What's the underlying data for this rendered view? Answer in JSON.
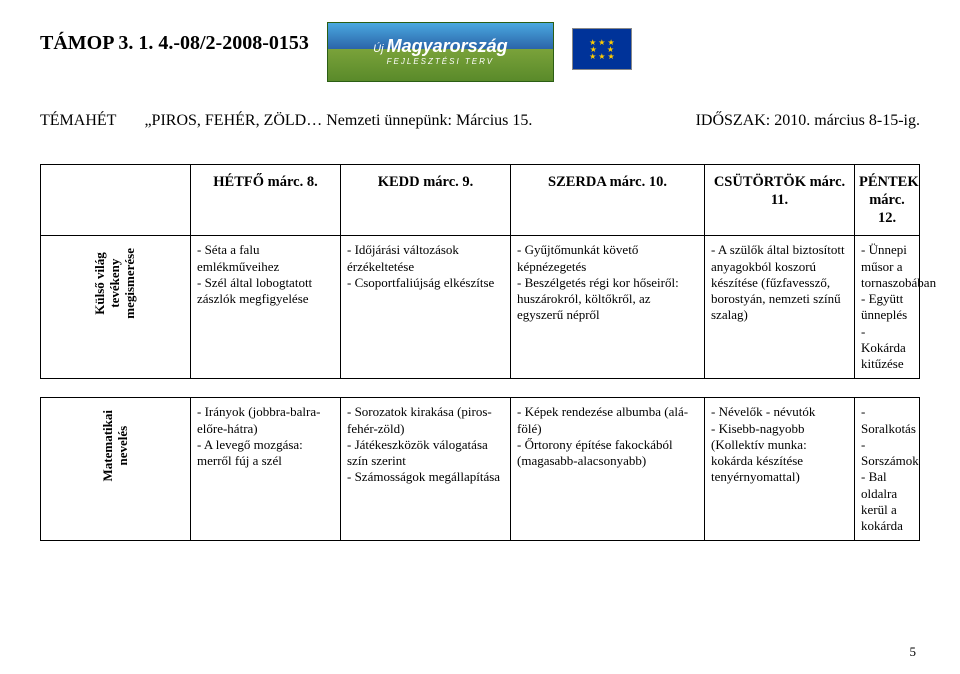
{
  "header": {
    "project_code": "TÁMOP 3. 1. 4.-08/2-2008-0153",
    "logo_top": "Új",
    "logo_main": "Magyarország",
    "logo_sub": "FEJLESZTÉSI TERV"
  },
  "title": {
    "theme_label": "TÉMAHÉT",
    "theme_text": "„PIROS, FEHÉR, ZÖLD… Nemzeti ünnepünk: Március 15.",
    "period": "IDŐSZAK: 2010. március 8-15-ig."
  },
  "days": {
    "mon": "HÉTFŐ márc. 8.",
    "tue": "KEDD márc. 9.",
    "wed": "SZERDA márc. 10.",
    "thu": "CSÜTÖRTÖK márc. 11.",
    "fri": "PÉNTEK márc. 12."
  },
  "rows": {
    "world": {
      "label": "Külső világ\ntevékeny\nmegismerése",
      "mon": "- Séta a falu emlékműveihez\n- Szél által lobogtatott zászlók megfigyelése",
      "tue": "- Időjárási változások érzékeltetése\n- Csoportfaliújság elkészítse",
      "wed": "- Gyűjtőmunkát követő képnézegetés\n- Beszélgetés régi kor hőseiről: huszárokról, költőkről, az egyszerű népről",
      "thu": "- A szülők által biztosított anyagokból koszorú készítése (fűzfavessző, borostyán, nemzeti színű szalag)",
      "fri": "- Ünnepi műsor a tornaszobában\n- Együtt ünneplés\n- Kokárda kitűzése"
    },
    "math": {
      "label": "Matematikai\nnevelés",
      "mon": "- Irányok (jobbra-balra-előre-hátra)\n- A levegő mozgása: merről fúj a szél",
      "tue": "- Sorozatok kirakása (piros-fehér-zöld)\n- Játékeszközök válogatása szín szerint\n- Számosságok megállapítása",
      "wed": "- Képek rendezése albumba (alá-fölé)\n- Őrtorony építése fakockából (magasabb-alacsonyabb)",
      "thu": "- Névelők - névutók\n- Kisebb-nagyobb (Kollektív munka: kokárda készítése tenyérnyomattal)",
      "fri": "- Soralkotás\n- Sorszámok\n- Bal oldalra kerül a kokárda"
    }
  },
  "page_number": "5"
}
